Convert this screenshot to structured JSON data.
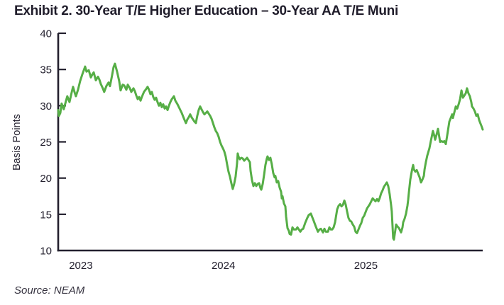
{
  "header": {
    "title": "Exhibit 2. 30-Year T/E Higher Education – 30-Year AA T/E Muni"
  },
  "footer": {
    "source": "Source: NEAM"
  },
  "chart_data": {
    "type": "line",
    "title": "Exhibit 2. 30-Year T/E Higher Education – 30-Year AA T/E Muni",
    "xlabel": "",
    "ylabel": "Basis Points",
    "ylim": [
      10,
      40
    ],
    "yticks": [
      40,
      35,
      30,
      25,
      20,
      15,
      10
    ],
    "xticks": [
      2023,
      2024,
      2025
    ],
    "grid": false,
    "legend": "none",
    "series_name": "30-Year T/E Higher Education minus 30-Year AA T/E Muni spread",
    "line_color": "#56AE46",
    "axis_color": "#23202E",
    "points": [
      [
        2022.841,
        29.4
      ],
      [
        2022.846,
        28.6
      ],
      [
        2022.856,
        29.0
      ],
      [
        2022.865,
        30.3
      ],
      [
        2022.88,
        29.5
      ],
      [
        2022.895,
        30.6
      ],
      [
        2022.905,
        31.3
      ],
      [
        2022.92,
        30.5
      ],
      [
        2022.935,
        31.8
      ],
      [
        2022.945,
        32.6
      ],
      [
        2022.955,
        31.9
      ],
      [
        2022.965,
        31.3
      ],
      [
        2022.98,
        32.2
      ],
      [
        2022.995,
        33.4
      ],
      [
        2023.01,
        34.3
      ],
      [
        2023.03,
        35.4
      ],
      [
        2023.04,
        34.7
      ],
      [
        2023.055,
        34.9
      ],
      [
        2023.07,
        33.9
      ],
      [
        2023.08,
        34.3
      ],
      [
        2023.09,
        34.6
      ],
      [
        2023.105,
        33.5
      ],
      [
        2023.12,
        34.0
      ],
      [
        2023.13,
        33.6
      ],
      [
        2023.14,
        33.0
      ],
      [
        2023.154,
        32.4
      ],
      [
        2023.164,
        31.9
      ],
      [
        2023.179,
        32.7
      ],
      [
        2023.194,
        33.2
      ],
      [
        2023.204,
        32.7
      ],
      [
        2023.219,
        34.2
      ],
      [
        2023.229,
        35.3
      ],
      [
        2023.239,
        35.8
      ],
      [
        2023.254,
        34.7
      ],
      [
        2023.269,
        33.4
      ],
      [
        2023.279,
        32.1
      ],
      [
        2023.294,
        32.9
      ],
      [
        2023.304,
        32.8
      ],
      [
        2023.319,
        32.2
      ],
      [
        2023.329,
        32.9
      ],
      [
        2023.344,
        32.4
      ],
      [
        2023.354,
        31.9
      ],
      [
        2023.369,
        32.4
      ],
      [
        2023.379,
        32.0
      ],
      [
        2023.389,
        31.4
      ],
      [
        2023.399,
        30.9
      ],
      [
        2023.409,
        31.2
      ],
      [
        2023.419,
        30.7
      ],
      [
        2023.428,
        31.2
      ],
      [
        2023.443,
        31.9
      ],
      [
        2023.458,
        32.3
      ],
      [
        2023.468,
        32.6
      ],
      [
        2023.478,
        32.2
      ],
      [
        2023.488,
        31.6
      ],
      [
        2023.498,
        31.9
      ],
      [
        2023.508,
        31.2
      ],
      [
        2023.518,
        30.8
      ],
      [
        2023.528,
        31.1
      ],
      [
        2023.538,
        30.5
      ],
      [
        2023.548,
        30.0
      ],
      [
        2023.558,
        30.4
      ],
      [
        2023.568,
        29.8
      ],
      [
        2023.578,
        30.2
      ],
      [
        2023.588,
        29.6
      ],
      [
        2023.598,
        29.9
      ],
      [
        2023.608,
        29.4
      ],
      [
        2023.618,
        30.0
      ],
      [
        2023.628,
        30.5
      ],
      [
        2023.638,
        30.9
      ],
      [
        2023.653,
        31.3
      ],
      [
        2023.663,
        30.7
      ],
      [
        2023.678,
        30.2
      ],
      [
        2023.688,
        29.8
      ],
      [
        2023.698,
        29.4
      ],
      [
        2023.708,
        29.0
      ],
      [
        2023.718,
        28.5
      ],
      [
        2023.728,
        28.0
      ],
      [
        2023.737,
        27.6
      ],
      [
        2023.747,
        28.1
      ],
      [
        2023.757,
        28.4
      ],
      [
        2023.767,
        28.8
      ],
      [
        2023.777,
        28.4
      ],
      [
        2023.787,
        28.1
      ],
      [
        2023.797,
        27.8
      ],
      [
        2023.807,
        27.6
      ],
      [
        2023.817,
        28.6
      ],
      [
        2023.827,
        29.4
      ],
      [
        2023.837,
        29.9
      ],
      [
        2023.847,
        29.5
      ],
      [
        2023.857,
        29.1
      ],
      [
        2023.867,
        28.8
      ],
      [
        2023.877,
        29.0
      ],
      [
        2023.887,
        29.2
      ],
      [
        2023.897,
        28.9
      ],
      [
        2023.907,
        28.6
      ],
      [
        2023.917,
        28.2
      ],
      [
        2023.927,
        27.6
      ],
      [
        2023.937,
        27.0
      ],
      [
        2023.947,
        26.5
      ],
      [
        2023.957,
        26.2
      ],
      [
        2023.967,
        25.7
      ],
      [
        2023.977,
        25.0
      ],
      [
        2023.987,
        24.5
      ],
      [
        2023.997,
        24.1
      ],
      [
        2024.006,
        23.7
      ],
      [
        2024.016,
        23.0
      ],
      [
        2024.026,
        21.9
      ],
      [
        2024.036,
        20.9
      ],
      [
        2024.046,
        20.2
      ],
      [
        2024.056,
        19.3
      ],
      [
        2024.066,
        18.5
      ],
      [
        2024.076,
        19.2
      ],
      [
        2024.086,
        20.2
      ],
      [
        2024.096,
        22.0
      ],
      [
        2024.101,
        23.4
      ],
      [
        2024.106,
        23.0
      ],
      [
        2024.116,
        22.6
      ],
      [
        2024.126,
        22.8
      ],
      [
        2024.136,
        22.7
      ],
      [
        2024.146,
        22.4
      ],
      [
        2024.156,
        22.6
      ],
      [
        2024.166,
        22.8
      ],
      [
        2024.176,
        22.5
      ],
      [
        2024.186,
        22.2
      ],
      [
        2024.191,
        21.0
      ],
      [
        2024.201,
        19.7
      ],
      [
        2024.211,
        18.9
      ],
      [
        2024.221,
        19.3
      ],
      [
        2024.231,
        18.9
      ],
      [
        2024.241,
        19.2
      ],
      [
        2024.251,
        19.3
      ],
      [
        2024.261,
        18.6
      ],
      [
        2024.266,
        18.4
      ],
      [
        2024.276,
        19.2
      ],
      [
        2024.286,
        20.5
      ],
      [
        2024.295,
        21.8
      ],
      [
        2024.305,
        22.7
      ],
      [
        2024.31,
        23.0
      ],
      [
        2024.32,
        22.5
      ],
      [
        2024.33,
        22.8
      ],
      [
        2024.34,
        21.9
      ],
      [
        2024.35,
        20.7
      ],
      [
        2024.36,
        20.1
      ],
      [
        2024.365,
        20.3
      ],
      [
        2024.375,
        19.4
      ],
      [
        2024.385,
        19.6
      ],
      [
        2024.395,
        18.7
      ],
      [
        2024.405,
        18.1
      ],
      [
        2024.41,
        17.2
      ],
      [
        2024.415,
        17.5
      ],
      [
        2024.425,
        16.5
      ],
      [
        2024.435,
        16.1
      ],
      [
        2024.44,
        14.7
      ],
      [
        2024.45,
        13.1
      ],
      [
        2024.46,
        12.7
      ],
      [
        2024.465,
        12.3
      ],
      [
        2024.475,
        12.2
      ],
      [
        2024.485,
        13.2
      ],
      [
        2024.495,
        12.9
      ],
      [
        2024.51,
        12.9
      ],
      [
        2024.52,
        13.2
      ],
      [
        2024.53,
        12.9
      ],
      [
        2024.54,
        12.6
      ],
      [
        2024.55,
        12.9
      ],
      [
        2024.56,
        13.0
      ],
      [
        2024.574,
        13.8
      ],
      [
        2024.589,
        14.5
      ],
      [
        2024.599,
        14.9
      ],
      [
        2024.614,
        15.1
      ],
      [
        2024.624,
        14.6
      ],
      [
        2024.634,
        14.1
      ],
      [
        2024.649,
        13.3
      ],
      [
        2024.664,
        12.6
      ],
      [
        2024.674,
        12.9
      ],
      [
        2024.684,
        13.0
      ],
      [
        2024.699,
        12.5
      ],
      [
        2024.709,
        13.0
      ],
      [
        2024.719,
        12.6
      ],
      [
        2024.734,
        12.6
      ],
      [
        2024.744,
        13.2
      ],
      [
        2024.754,
        12.9
      ],
      [
        2024.764,
        12.9
      ],
      [
        2024.774,
        13.2
      ],
      [
        2024.784,
        13.9
      ],
      [
        2024.799,
        15.7
      ],
      [
        2024.809,
        16.2
      ],
      [
        2024.819,
        16.4
      ],
      [
        2024.829,
        16.1
      ],
      [
        2024.839,
        16.3
      ],
      [
        2024.849,
        16.9
      ],
      [
        2024.859,
        16.3
      ],
      [
        2024.868,
        15.4
      ],
      [
        2024.878,
        14.5
      ],
      [
        2024.888,
        14.1
      ],
      [
        2024.898,
        14.0
      ],
      [
        2024.908,
        13.6
      ],
      [
        2024.918,
        13.3
      ],
      [
        2024.928,
        12.6
      ],
      [
        2024.938,
        12.4
      ],
      [
        2024.948,
        12.9
      ],
      [
        2024.958,
        13.4
      ],
      [
        2024.968,
        13.8
      ],
      [
        2024.978,
        14.5
      ],
      [
        2024.988,
        14.8
      ],
      [
        2024.998,
        15.3
      ],
      [
        2025.008,
        15.8
      ],
      [
        2025.018,
        16.1
      ],
      [
        2025.028,
        16.4
      ],
      [
        2025.038,
        16.8
      ],
      [
        2025.048,
        17.2
      ],
      [
        2025.058,
        17.0
      ],
      [
        2025.068,
        16.8
      ],
      [
        2025.078,
        17.1
      ],
      [
        2025.088,
        16.8
      ],
      [
        2025.098,
        17.3
      ],
      [
        2025.107,
        17.9
      ],
      [
        2025.117,
        18.3
      ],
      [
        2025.127,
        18.8
      ],
      [
        2025.137,
        19.1
      ],
      [
        2025.147,
        19.4
      ],
      [
        2025.157,
        18.9
      ],
      [
        2025.167,
        17.8
      ],
      [
        2025.177,
        16.3
      ],
      [
        2025.182,
        15.4
      ],
      [
        2025.187,
        13.5
      ],
      [
        2025.192,
        11.7
      ],
      [
        2025.197,
        11.5
      ],
      [
        2025.207,
        12.8
      ],
      [
        2025.212,
        13.6
      ],
      [
        2025.222,
        13.3
      ],
      [
        2025.232,
        13.1
      ],
      [
        2025.242,
        12.7
      ],
      [
        2025.247,
        12.5
      ],
      [
        2025.257,
        13.2
      ],
      [
        2025.262,
        13.9
      ],
      [
        2025.272,
        14.4
      ],
      [
        2025.282,
        15.1
      ],
      [
        2025.292,
        16.2
      ],
      [
        2025.297,
        17.0
      ],
      [
        2025.302,
        18.0
      ],
      [
        2025.312,
        19.8
      ],
      [
        2025.322,
        20.9
      ],
      [
        2025.327,
        21.4
      ],
      [
        2025.332,
        21.8
      ],
      [
        2025.337,
        21.2
      ],
      [
        2025.347,
        20.9
      ],
      [
        2025.357,
        21.1
      ],
      [
        2025.367,
        20.6
      ],
      [
        2025.377,
        20.1
      ],
      [
        2025.387,
        19.4
      ],
      [
        2025.397,
        19.8
      ],
      [
        2025.407,
        20.3
      ],
      [
        2025.412,
        21.2
      ],
      [
        2025.421,
        22.2
      ],
      [
        2025.431,
        23.1
      ],
      [
        2025.446,
        24.1
      ],
      [
        2025.456,
        25.1
      ],
      [
        2025.471,
        26.5
      ],
      [
        2025.481,
        25.8
      ],
      [
        2025.486,
        25.3
      ],
      [
        2025.496,
        26.0
      ],
      [
        2025.506,
        26.8
      ],
      [
        2025.516,
        25.6
      ],
      [
        2025.521,
        25.0
      ],
      [
        2025.531,
        25.1
      ],
      [
        2025.541,
        25.0
      ],
      [
        2025.551,
        25.1
      ],
      [
        2025.561,
        24.7
      ],
      [
        2025.571,
        25.9
      ],
      [
        2025.586,
        27.8
      ],
      [
        2025.596,
        28.3
      ],
      [
        2025.606,
        28.8
      ],
      [
        2025.611,
        28.3
      ],
      [
        2025.621,
        29.1
      ],
      [
        2025.631,
        29.9
      ],
      [
        2025.641,
        29.6
      ],
      [
        2025.651,
        30.2
      ],
      [
        2025.661,
        30.9
      ],
      [
        2025.671,
        32.1
      ],
      [
        2025.681,
        31.1
      ],
      [
        2025.691,
        31.4
      ],
      [
        2025.701,
        31.7
      ],
      [
        2025.71,
        32.4
      ],
      [
        2025.72,
        31.7
      ],
      [
        2025.73,
        31.3
      ],
      [
        2025.74,
        30.5
      ],
      [
        2025.745,
        29.9
      ],
      [
        2025.755,
        29.6
      ],
      [
        2025.765,
        29.2
      ],
      [
        2025.775,
        28.6
      ],
      [
        2025.785,
        28.8
      ],
      [
        2025.795,
        28.0
      ],
      [
        2025.805,
        27.5
      ],
      [
        2025.815,
        27.0
      ],
      [
        2025.82,
        26.7
      ]
    ]
  }
}
